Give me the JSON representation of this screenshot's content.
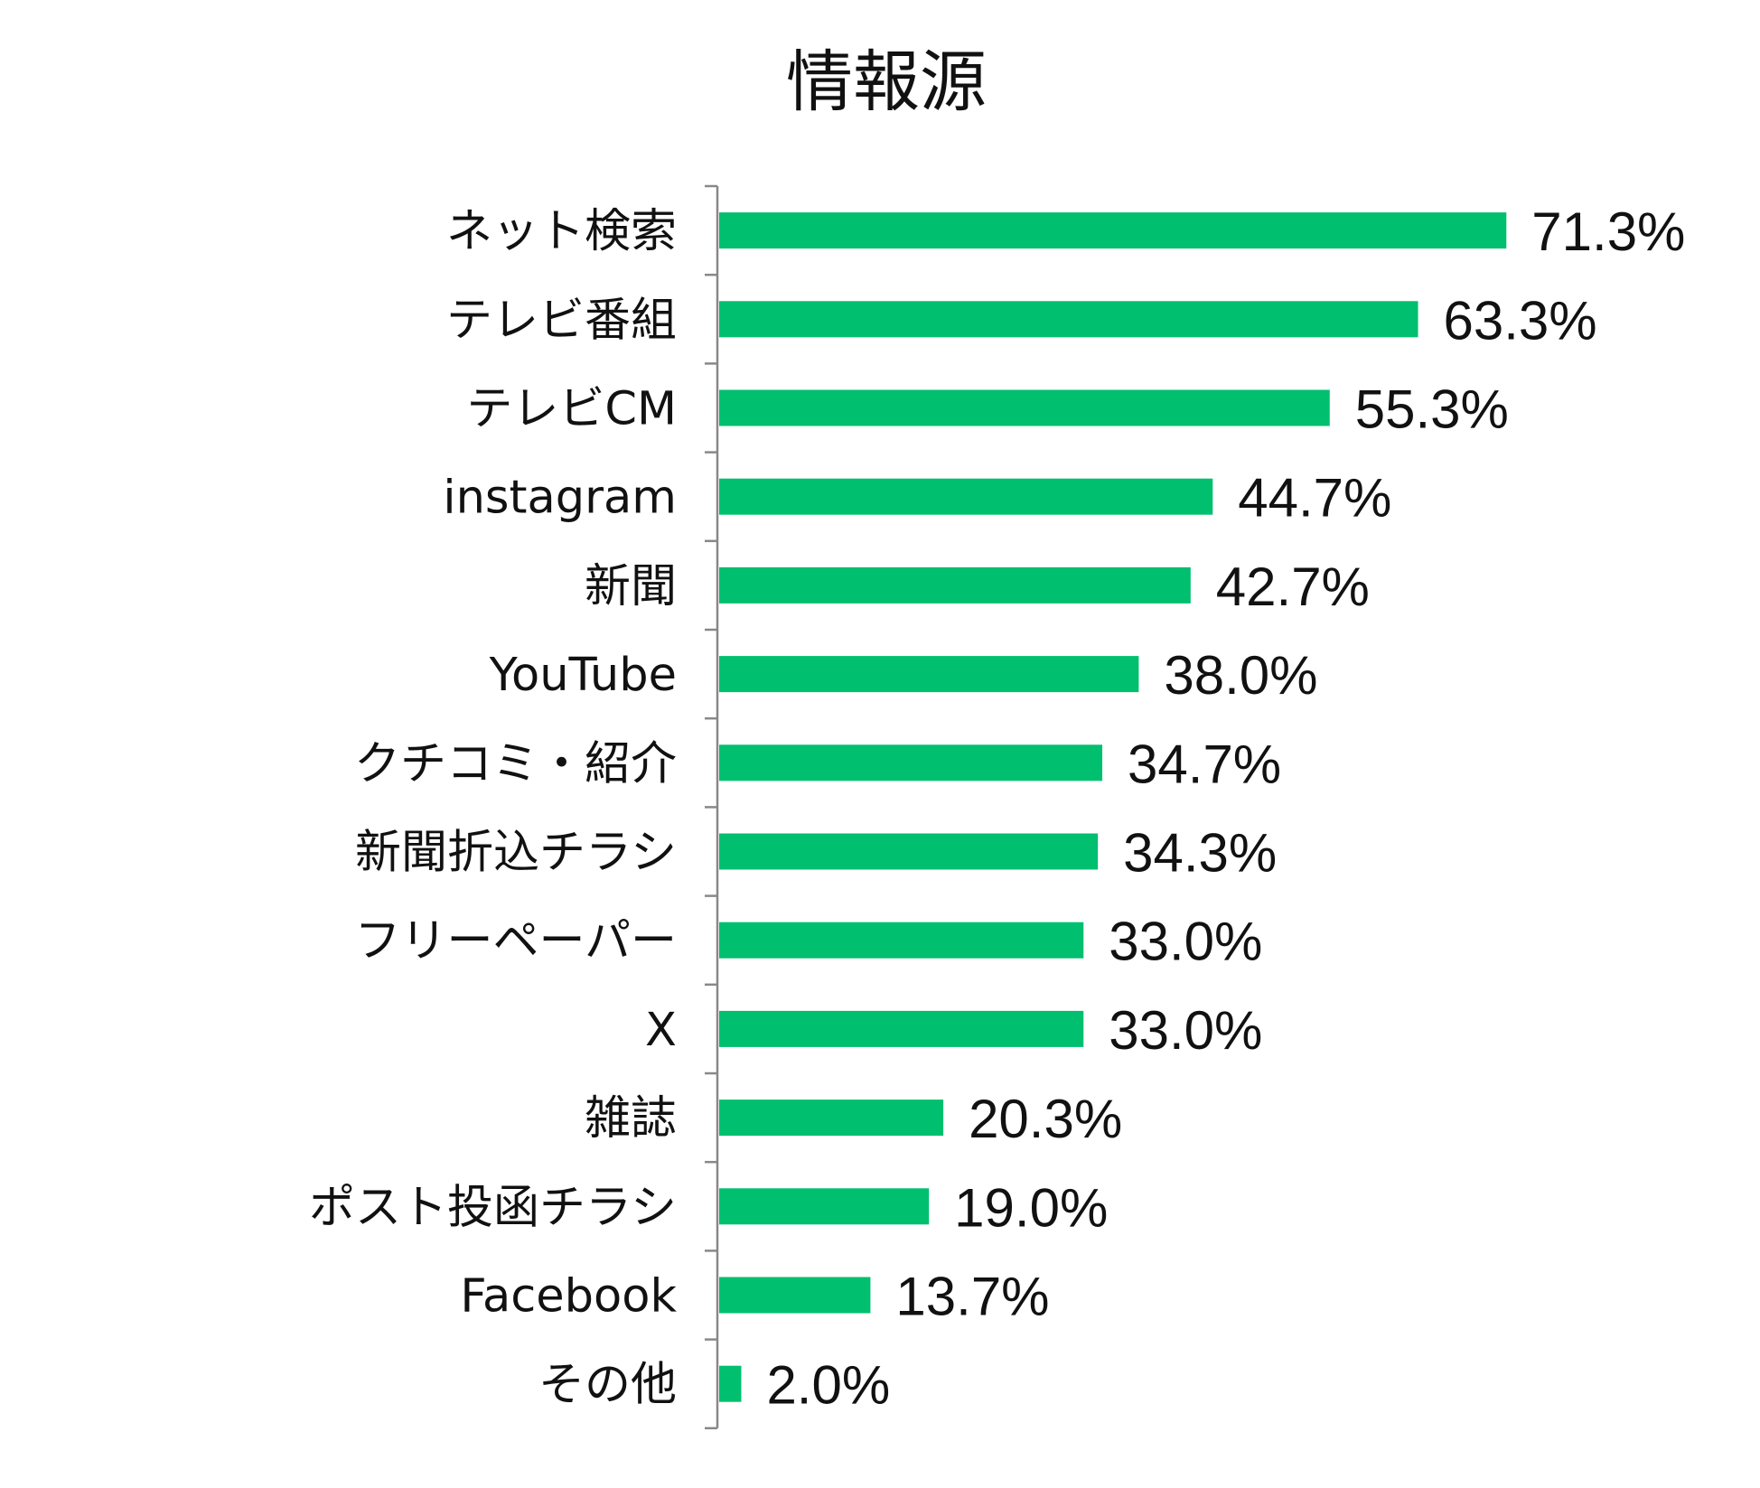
{
  "chart_data": {
    "type": "bar",
    "orientation": "horizontal",
    "title": "情報源",
    "xlabel": "",
    "ylabel": "",
    "categories": [
      "ネット検索",
      "テレビ番組",
      "テレビCM",
      "instagram",
      "新聞",
      "YouTube",
      "クチコミ・紹介",
      "新聞折込チラシ",
      "フリーペーパー",
      "X",
      "雑誌",
      "ポスト投函チラシ",
      "Facebook",
      "その他"
    ],
    "values": [
      71.3,
      63.3,
      55.3,
      44.7,
      42.7,
      38.0,
      34.7,
      34.3,
      33.0,
      33.0,
      20.3,
      19.0,
      13.7,
      2.0
    ],
    "value_labels": [
      "71.3%",
      "63.3%",
      "55.3%",
      "44.7%",
      "42.7%",
      "38.0%",
      "34.7%",
      "34.3%",
      "33.0%",
      "33.0%",
      "20.3%",
      "19.0%",
      "13.7%",
      "2.0%"
    ],
    "unit": "%",
    "xlim": [
      0,
      100
    ],
    "grid": false,
    "legend": "none",
    "bar_color": "#00BF6F"
  }
}
